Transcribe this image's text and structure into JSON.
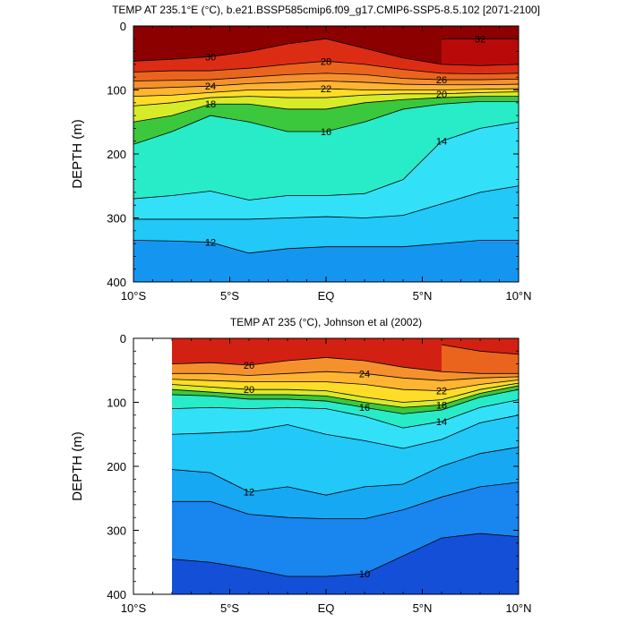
{
  "chart_data": [
    {
      "type": "heatmap",
      "subtype": "filled-contour depth-latitude section",
      "title": "TEMP AT 235.1°E (°C), b.e21.BSSP585cmip6.f09_g17.CMIP6-SSP5-8.5.102 [2071-2100]",
      "xlabel": "",
      "ylabel": "DEPTH (m)",
      "xlim": [
        -10,
        10
      ],
      "ylim": [
        400,
        0
      ],
      "x_ticks": [
        -10,
        -5,
        0,
        5,
        10
      ],
      "x_tick_labels": [
        "10°S",
        "5°S",
        "EQ",
        "5°N",
        "10°N"
      ],
      "y_ticks": [
        0,
        100,
        200,
        300,
        400
      ],
      "y_tick_labels": [
        "0",
        "100",
        "200",
        "300",
        "400"
      ],
      "data_lat_range": [
        -10,
        10
      ],
      "contour_levels": [
        12,
        13,
        14,
        15,
        16,
        17,
        18,
        19,
        20,
        21,
        22,
        23,
        24,
        25,
        26,
        27,
        28,
        29,
        30,
        31,
        32
      ],
      "isotherm_depths": {
        "lat": [
          -10,
          -8,
          -6,
          -4,
          -2,
          0,
          2,
          4,
          6,
          8,
          10
        ],
        "levels": [
          {
            "t": 32,
            "depth": [
              null,
              null,
              null,
              null,
              null,
              null,
              null,
              null,
              20,
              20,
              20
            ]
          },
          {
            "t": 30,
            "depth": [
              55,
              52,
              48,
              40,
              28,
              20,
              35,
              50,
              60,
              62,
              60
            ]
          },
          {
            "t": 28,
            "depth": [
              72,
              70,
              70,
              66,
              60,
              55,
              60,
              68,
              74,
              75,
              74
            ]
          },
          {
            "t": 26,
            "depth": [
              86,
              85,
              84,
              80,
              76,
              74,
              76,
              82,
              84,
              84,
              83
            ]
          },
          {
            "t": 24,
            "depth": [
              98,
              96,
              94,
              90,
              88,
              86,
              88,
              91,
              92,
              92,
              91
            ]
          },
          {
            "t": 22,
            "depth": [
              110,
              108,
              104,
              100,
              100,
              98,
              100,
              100,
              100,
              99,
              98
            ]
          },
          {
            "t": 20,
            "depth": [
              125,
              120,
              112,
              110,
              112,
              112,
              108,
              106,
              106,
              104,
              103
            ]
          },
          {
            "t": 18,
            "depth": [
              150,
              140,
              122,
              122,
              130,
              130,
              120,
              115,
              112,
              110,
              110
            ]
          },
          {
            "t": 16,
            "depth": [
              185,
              165,
              140,
              150,
              165,
              165,
              150,
              130,
              122,
              118,
              118
            ]
          },
          {
            "t": 14,
            "depth": [
              270,
              265,
              258,
              272,
              265,
              265,
              262,
              240,
              180,
              160,
              150
            ]
          },
          {
            "t": 13,
            "depth": [
              302,
              302,
              302,
              302,
              300,
              298,
              300,
              296,
              278,
              260,
              250
            ]
          },
          {
            "t": 12,
            "depth": [
              335,
              336,
              338,
              355,
              348,
              345,
              345,
              345,
              340,
              335,
              335
            ]
          }
        ],
        "deep": 400
      },
      "contour_labels": [
        "30",
        "28",
        "26",
        "24",
        "22",
        "20",
        "18",
        "16",
        "14",
        "12",
        "32"
      ]
    },
    {
      "type": "heatmap",
      "subtype": "filled-contour depth-latitude section",
      "title": "TEMP AT 235 (°C), Johnson et al (2002)",
      "xlabel": "",
      "ylabel": "DEPTH (m)",
      "xlim": [
        -10,
        10
      ],
      "ylim": [
        400,
        0
      ],
      "x_ticks": [
        -10,
        -5,
        0,
        5,
        10
      ],
      "x_tick_labels": [
        "10°S",
        "5°S",
        "EQ",
        "5°N",
        "10°N"
      ],
      "y_ticks": [
        0,
        100,
        200,
        300,
        400
      ],
      "y_tick_labels": [
        "0",
        "100",
        "200",
        "300",
        "400"
      ],
      "data_lat_range": [
        -8,
        10
      ],
      "contour_levels": [
        10,
        11,
        12,
        13,
        14,
        15,
        16,
        17,
        18,
        19,
        20,
        21,
        22,
        23,
        24,
        25,
        26,
        27,
        28
      ],
      "isotherm_depths": {
        "lat": [
          -8,
          -6,
          -4,
          -2,
          0,
          2,
          4,
          6,
          8,
          10
        ],
        "levels": [
          {
            "t": 28,
            "depth": [
              null,
              null,
              null,
              null,
              null,
              null,
              null,
              10,
              20,
              25
            ]
          },
          {
            "t": 26,
            "depth": [
              40,
              38,
              42,
              35,
              30,
              35,
              45,
              52,
              55,
              55
            ]
          },
          {
            "t": 24,
            "depth": [
              55,
              55,
              58,
              55,
              52,
              55,
              62,
              66,
              62,
              60
            ]
          },
          {
            "t": 22,
            "depth": [
              64,
              66,
              68,
              68,
              68,
              72,
              80,
              82,
              72,
              65
            ]
          },
          {
            "t": 20,
            "depth": [
              72,
              76,
              80,
              80,
              82,
              92,
              100,
              96,
              80,
              70
            ]
          },
          {
            "t": 18,
            "depth": [
              80,
              84,
              88,
              88,
              90,
              100,
              108,
              104,
              86,
              74
            ]
          },
          {
            "t": 16,
            "depth": [
              88,
              90,
              95,
              95,
              98,
              108,
              118,
              112,
              92,
              80
            ]
          },
          {
            "t": 14,
            "depth": [
              110,
              108,
              110,
              108,
              110,
              122,
              140,
              130,
              108,
              96
            ]
          },
          {
            "t": 13,
            "depth": [
              150,
              148,
              145,
              135,
              150,
              160,
              172,
              158,
              132,
              120
            ]
          },
          {
            "t": 12,
            "depth": [
              205,
              210,
              240,
              232,
              245,
              232,
              228,
              200,
              180,
              170
            ]
          },
          {
            "t": 11,
            "depth": [
              255,
              255,
              275,
              280,
              282,
              282,
              268,
              248,
              232,
              225
            ]
          },
          {
            "t": 10,
            "depth": [
              345,
              350,
              360,
              372,
              372,
              368,
              340,
              312,
              305,
              310
            ]
          }
        ],
        "deep": 400
      },
      "contour_labels": [
        "26",
        "24",
        "22",
        "20",
        "16",
        "14",
        "12",
        "10",
        "18",
        "19"
      ]
    }
  ]
}
